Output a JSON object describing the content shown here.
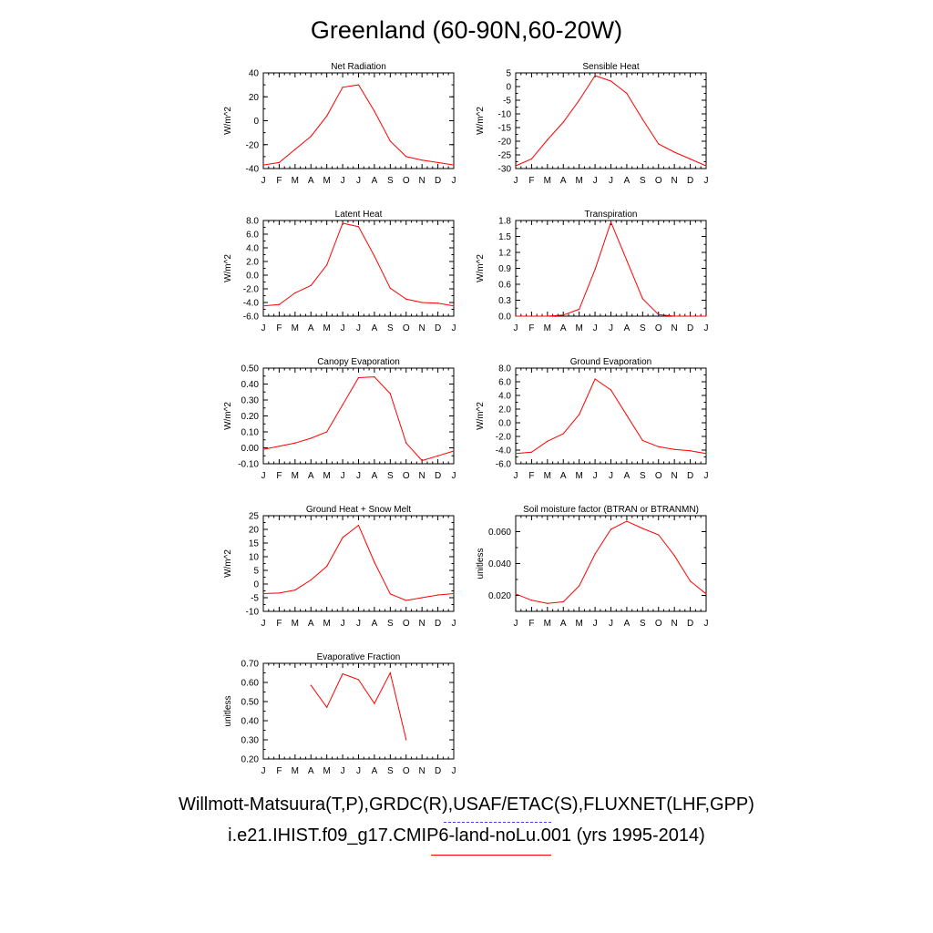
{
  "title": "Greenland (60-90N,60-20W)",
  "months": [
    "J",
    "F",
    "M",
    "A",
    "M",
    "J",
    "J",
    "A",
    "S",
    "O",
    "N",
    "D",
    "J"
  ],
  "colors": {
    "model": "#ff0000",
    "obs": "#4040ff",
    "axis": "#000000"
  },
  "legend": {
    "obs_label": "Willmott-Matsuura(T,P),GRDC(R),USAF/ETAC(S),FLUXNET(LHF,GPP)",
    "model_label": "i.e21.IHIST.f09_g17.CMIP6-land-noLu.001 (yrs 1995-2014)"
  },
  "chart_data": [
    {
      "type": "line",
      "title": "Net Radiation",
      "ylabel": "W/m^2",
      "ylim": [
        -40,
        40
      ],
      "yticks": [
        "-40",
        "-20",
        "0",
        "20",
        "40"
      ],
      "series": [
        {
          "values": [
            -37,
            -35,
            -24,
            -13,
            4,
            28,
            30,
            8,
            -17,
            -30,
            -33,
            -35,
            -37
          ]
        }
      ]
    },
    {
      "type": "line",
      "title": "Sensible Heat",
      "ylabel": "W/m^2",
      "ylim": [
        -30,
        5
      ],
      "yticks": [
        "-30",
        "-25",
        "-20",
        "-15",
        "-10",
        "-5",
        "0",
        "5"
      ],
      "series": [
        {
          "values": [
            -29,
            -26.5,
            -19.5,
            -13,
            -5,
            4,
            2,
            -2.5,
            -12,
            -21,
            -24,
            -26.5,
            -29
          ]
        }
      ]
    },
    {
      "type": "line",
      "title": "Latent Heat",
      "ylabel": "W/m^2",
      "ylim": [
        -6,
        8
      ],
      "yticks": [
        "-6.0",
        "-4.0",
        "-2.0",
        "0.0",
        "2.0",
        "4.0",
        "6.0",
        "8.0"
      ],
      "series": [
        {
          "values": [
            -4.5,
            -4.3,
            -2.6,
            -1.5,
            1.5,
            7.6,
            7.1,
            2.8,
            -1.9,
            -3.5,
            -4.0,
            -4.1,
            -4.5
          ]
        }
      ]
    },
    {
      "type": "line",
      "title": "Transpiration",
      "ylabel": "W/m^2",
      "ylim": [
        0,
        1.8
      ],
      "yticks": [
        "0.0",
        "0.3",
        "0.6",
        "0.9",
        "1.2",
        "1.5",
        "1.8"
      ],
      "series": [
        {
          "values": [
            0.0,
            0.0,
            0.0,
            0.02,
            0.13,
            0.88,
            1.77,
            1.05,
            0.33,
            0.03,
            0.0,
            0.0,
            0.0
          ]
        }
      ]
    },
    {
      "type": "line",
      "title": "Canopy Evaporation",
      "ylabel": "W/m^2",
      "ylim": [
        -0.1,
        0.5
      ],
      "yticks": [
        "-0.10",
        "0.00",
        "0.10",
        "0.20",
        "0.30",
        "0.40",
        "0.50"
      ],
      "series": [
        {
          "values": [
            -0.01,
            0.01,
            0.03,
            0.06,
            0.1,
            0.27,
            0.44,
            0.445,
            0.34,
            0.03,
            -0.08,
            -0.05,
            -0.02
          ]
        }
      ]
    },
    {
      "type": "line",
      "title": "Ground Evaporation",
      "ylabel": "W/m^2",
      "ylim": [
        -6,
        8
      ],
      "yticks": [
        "-6.0",
        "-4.0",
        "-2.0",
        "0.0",
        "2.0",
        "4.0",
        "6.0",
        "8.0"
      ],
      "series": [
        {
          "values": [
            -4.5,
            -4.3,
            -2.7,
            -1.6,
            1.2,
            6.4,
            4.8,
            1.1,
            -2.6,
            -3.5,
            -3.9,
            -4.1,
            -4.5
          ]
        }
      ]
    },
    {
      "type": "line",
      "title": "Ground Heat + Snow Melt",
      "ylabel": "W/m^2",
      "ylim": [
        -10,
        25
      ],
      "yticks": [
        "-10",
        "-5",
        "0",
        "5",
        "10",
        "15",
        "20",
        "25"
      ],
      "series": [
        {
          "values": [
            -3.5,
            -3.3,
            -2.2,
            1.5,
            6.5,
            17,
            21.5,
            8,
            -3.6,
            -6,
            -5,
            -4,
            -3.5
          ]
        }
      ]
    },
    {
      "type": "line",
      "title": "Soil moisture factor (BTRAN or BTRANMN)",
      "ylabel": "unitless",
      "ylim": [
        0.01,
        0.07
      ],
      "yticks": [
        "0.020",
        "0.040",
        "0.060"
      ],
      "ytick_values": [
        0.02,
        0.04,
        0.06
      ],
      "series": [
        {
          "values": [
            0.021,
            0.017,
            0.015,
            0.016,
            0.026,
            0.046,
            0.0615,
            0.0665,
            0.062,
            0.058,
            0.045,
            0.029,
            0.021
          ]
        }
      ]
    },
    {
      "type": "line",
      "title": "Evaporative Fraction",
      "ylabel": "unitless",
      "ylim": [
        0.2,
        0.7
      ],
      "yticks": [
        "0.20",
        "0.30",
        "0.40",
        "0.50",
        "0.60",
        "0.70"
      ],
      "series": [
        {
          "values": [
            null,
            null,
            null,
            0.585,
            0.47,
            0.645,
            0.615,
            0.49,
            0.65,
            0.3,
            null,
            null,
            null
          ]
        }
      ]
    }
  ]
}
